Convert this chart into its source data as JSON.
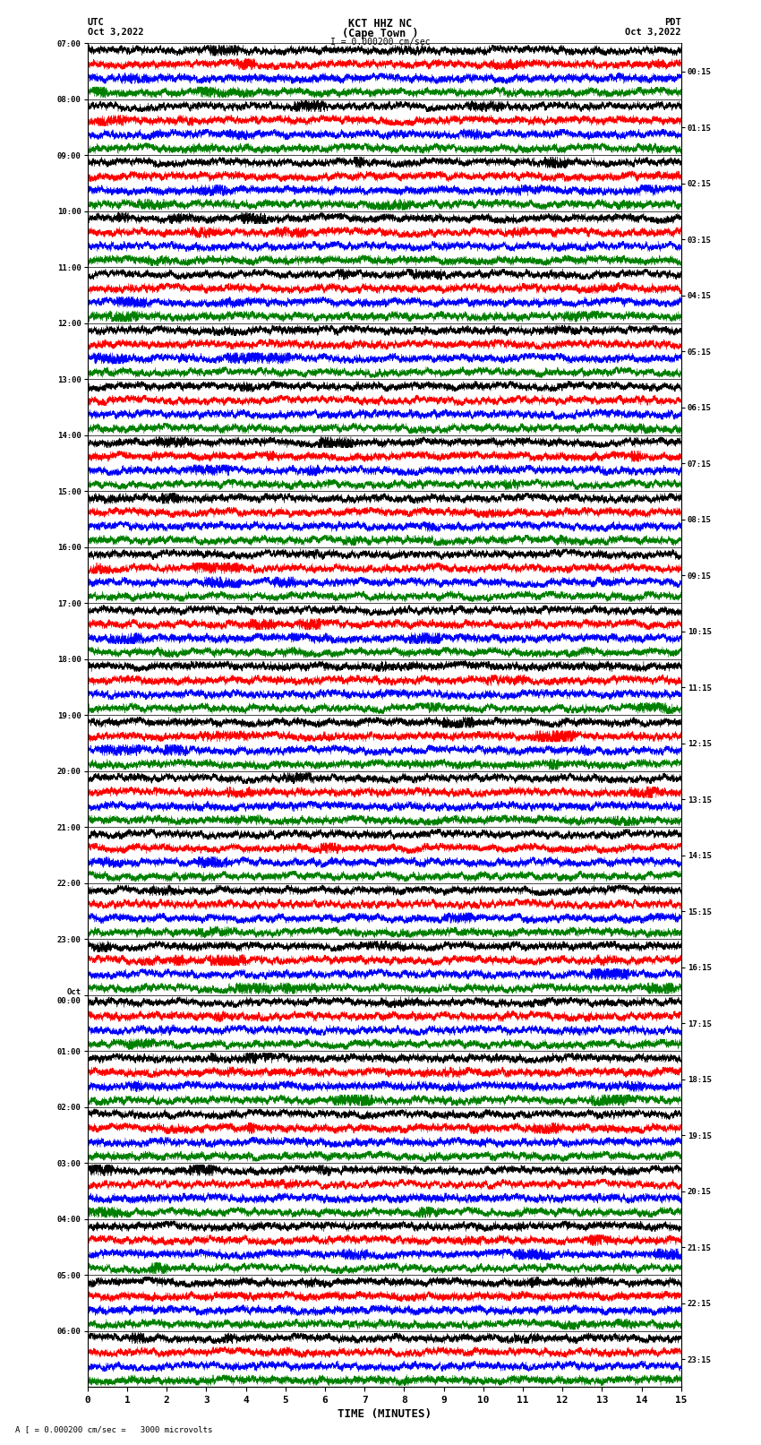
{
  "title_line1": "KCT HHZ NC",
  "title_line2": "(Cape Town )",
  "scale_label": "I = 0.000200 cm/sec",
  "left_label": "UTC",
  "left_date": "Oct 3,2022",
  "right_label": "PDT",
  "right_date": "Oct 3,2022",
  "bottom_label": "TIME (MINUTES)",
  "bottom_note": "A [ = 0.000200 cm/sec =   3000 microvolts",
  "left_times": [
    "07:00",
    "08:00",
    "09:00",
    "10:00",
    "11:00",
    "12:00",
    "13:00",
    "14:00",
    "15:00",
    "16:00",
    "17:00",
    "18:00",
    "19:00",
    "20:00",
    "21:00",
    "22:00",
    "23:00",
    "Oct\n00:00",
    "01:00",
    "02:00",
    "03:00",
    "04:00",
    "05:00",
    "06:00"
  ],
  "right_times": [
    "00:15",
    "01:15",
    "02:15",
    "03:15",
    "04:15",
    "05:15",
    "06:15",
    "07:15",
    "08:15",
    "09:15",
    "10:15",
    "11:15",
    "12:15",
    "13:15",
    "14:15",
    "15:15",
    "16:15",
    "17:15",
    "18:15",
    "19:15",
    "20:15",
    "21:15",
    "22:15",
    "23:15"
  ],
  "x_ticks": [
    0,
    1,
    2,
    3,
    4,
    5,
    6,
    7,
    8,
    9,
    10,
    11,
    12,
    13,
    14,
    15
  ],
  "n_rows": 24,
  "traces_per_row": 4,
  "trace_colors": [
    "black",
    "red",
    "blue",
    "green"
  ],
  "bg_color": "#ffffff",
  "fig_width": 8.5,
  "fig_height": 16.13,
  "dpi": 100
}
